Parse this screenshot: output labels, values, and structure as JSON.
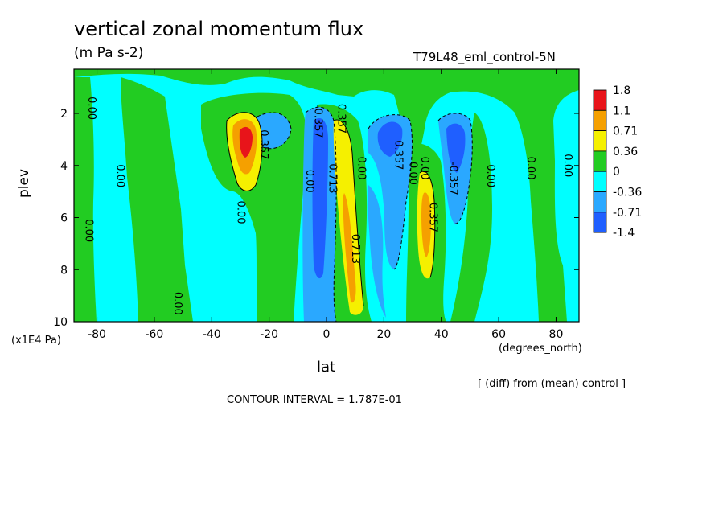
{
  "chart_data": {
    "type": "heatmap",
    "title": "vertical zonal momentum flux",
    "units": "(m Pa s-2)",
    "dataset": "T79L48_eml_control-5N",
    "xlabel": "lat",
    "xunits": "(degrees_north)",
    "ylabel": "plev",
    "yunits": "(x1E4 Pa)",
    "xlim": [
      -88,
      88
    ],
    "ylim": [
      10,
      0.3
    ],
    "xticks": [
      "-80",
      "-60",
      "-40",
      "-20",
      "0",
      "20",
      "40",
      "60",
      "80"
    ],
    "yticks": [
      "2",
      "4",
      "6",
      "8",
      "10"
    ],
    "note": "[ (diff) from (mean) control ]",
    "contour_interval": "CONTOUR INTERVAL = 1.787E-01",
    "colorbar": {
      "labels": [
        "1.8",
        "1.1",
        "0.71",
        "0.36",
        "0",
        "-0.36",
        "-0.71",
        "-1.4"
      ],
      "colors": [
        "#e8141a",
        "#f5a000",
        "#f5f000",
        "#22cc22",
        "#00ffff",
        "#2aa8ff",
        "#1f5fff"
      ]
    },
    "contour_labels": [
      {
        "text": "0.00",
        "x": -83,
        "y": 1.8
      },
      {
        "text": "0.00",
        "x": -73,
        "y": 4.4
      },
      {
        "text": "0.00",
        "x": -84,
        "y": 6.5
      },
      {
        "text": "0.00",
        "x": -53,
        "y": 9.3
      },
      {
        "text": "0.357",
        "x": -23,
        "y": 3.2
      },
      {
        "text": "0.00",
        "x": -31,
        "y": 5.8
      },
      {
        "text": "0.00",
        "x": -7,
        "y": 4.6
      },
      {
        "text": "-0.357",
        "x": -4,
        "y": 2.3
      },
      {
        "text": "0.713",
        "x": 1,
        "y": 4.5
      },
      {
        "text": "0.357",
        "x": 4,
        "y": 2.2
      },
      {
        "text": "0.713",
        "x": 9,
        "y": 7.2
      },
      {
        "text": "0.00",
        "x": 11,
        "y": 4.1
      },
      {
        "text": "0.357",
        "x": 24,
        "y": 3.6
      },
      {
        "text": "0.00",
        "x": 29,
        "y": 4.3
      },
      {
        "text": "0.00",
        "x": 33,
        "y": 4.1
      },
      {
        "text": "0.357",
        "x": 36,
        "y": 6.0
      },
      {
        "text": "-0.357",
        "x": 43,
        "y": 4.5
      },
      {
        "text": "0.00",
        "x": 56,
        "y": 4.4
      },
      {
        "text": "0.00",
        "x": 70,
        "y": 4.1
      },
      {
        "text": "0.00",
        "x": 83,
        "y": 4.0
      }
    ],
    "grid": false,
    "legend": "right"
  }
}
